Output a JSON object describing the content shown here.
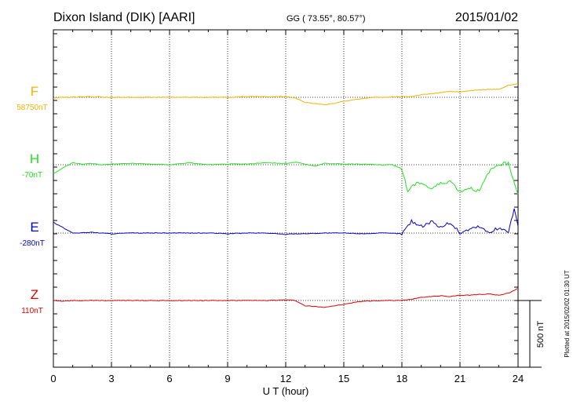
{
  "header": {
    "station": "Dixon Island (DIK)  [AARI]",
    "coords": "GG ( 73.55°,  80.57°)",
    "date": "2015/01/02"
  },
  "footer": {
    "plotted": "Plotted at 2015/02/02 01:30 UT",
    "scale_label": "500 nT"
  },
  "chart_data": {
    "type": "line",
    "title": "Dixon Island (DIK)  [AARI]",
    "xlabel": "U T (hour)",
    "ylabel": "",
    "xlim": [
      0,
      24
    ],
    "x_ticks": [
      "0",
      "3",
      "6",
      "9",
      "12",
      "15",
      "18",
      "21",
      "24"
    ],
    "scale_nT": 500,
    "grid": true,
    "colors": {
      "F": "#f0b400",
      "H": "#22e022",
      "E": "#0000d0",
      "Z": "#e00000"
    },
    "series": [
      {
        "name": "F",
        "baseline_label": "58750nT",
        "points": [
          [
            0,
            -5
          ],
          [
            0.5,
            0
          ],
          [
            1,
            0
          ],
          [
            2,
            5
          ],
          [
            3,
            0
          ],
          [
            4,
            0
          ],
          [
            5,
            0
          ],
          [
            6,
            0
          ],
          [
            7,
            0
          ],
          [
            8,
            0
          ],
          [
            9,
            0
          ],
          [
            10,
            5
          ],
          [
            11,
            5
          ],
          [
            12,
            5
          ],
          [
            12.5,
            -5
          ],
          [
            13,
            -40
          ],
          [
            13.5,
            -45
          ],
          [
            14,
            -55
          ],
          [
            14.5,
            -45
          ],
          [
            15,
            -30
          ],
          [
            15.5,
            -20
          ],
          [
            16,
            -10
          ],
          [
            16.5,
            0
          ],
          [
            17,
            0
          ],
          [
            18,
            5
          ],
          [
            18.5,
            5
          ],
          [
            19,
            20
          ],
          [
            19.5,
            25
          ],
          [
            20,
            35
          ],
          [
            20.5,
            45
          ],
          [
            21,
            40
          ],
          [
            21.5,
            50
          ],
          [
            22,
            55
          ],
          [
            22.5,
            60
          ],
          [
            23,
            60
          ],
          [
            23.5,
            90
          ],
          [
            24,
            100
          ]
        ]
      },
      {
        "name": "H",
        "baseline_label": "-70nT",
        "points": [
          [
            0,
            -65
          ],
          [
            0.3,
            -40
          ],
          [
            0.6,
            -15
          ],
          [
            1,
            15
          ],
          [
            1.5,
            5
          ],
          [
            2,
            10
          ],
          [
            2.5,
            0
          ],
          [
            3,
            5
          ],
          [
            4,
            10
          ],
          [
            5,
            5
          ],
          [
            6,
            0
          ],
          [
            7,
            15
          ],
          [
            8,
            0
          ],
          [
            9,
            5
          ],
          [
            10,
            5
          ],
          [
            11,
            15
          ],
          [
            12,
            10
          ],
          [
            12.5,
            20
          ],
          [
            13,
            5
          ],
          [
            13.5,
            -10
          ],
          [
            14,
            10
          ],
          [
            15,
            5
          ],
          [
            16,
            5
          ],
          [
            17,
            0
          ],
          [
            17.5,
            0
          ],
          [
            18,
            -30
          ],
          [
            18.3,
            -200
          ],
          [
            18.5,
            -160
          ],
          [
            19,
            -130
          ],
          [
            19.5,
            -180
          ],
          [
            20,
            -140
          ],
          [
            20.5,
            -120
          ],
          [
            21,
            -200
          ],
          [
            21.5,
            -170
          ],
          [
            22,
            -200
          ],
          [
            22.5,
            -50
          ],
          [
            23,
            5
          ],
          [
            23.5,
            10
          ],
          [
            24,
            -220
          ]
        ]
      },
      {
        "name": "E",
        "baseline_label": "-280nT",
        "points": [
          [
            0,
            80
          ],
          [
            0.5,
            40
          ],
          [
            1,
            0
          ],
          [
            2,
            5
          ],
          [
            3,
            -5
          ],
          [
            4,
            0
          ],
          [
            5,
            0
          ],
          [
            6,
            0
          ],
          [
            7,
            0
          ],
          [
            8,
            0
          ],
          [
            9,
            -5
          ],
          [
            10,
            0
          ],
          [
            11,
            0
          ],
          [
            12,
            -10
          ],
          [
            12.5,
            -5
          ],
          [
            13,
            -5
          ],
          [
            14,
            0
          ],
          [
            15,
            0
          ],
          [
            16,
            -5
          ],
          [
            17,
            0
          ],
          [
            18,
            -5
          ],
          [
            18.5,
            90
          ],
          [
            19,
            50
          ],
          [
            19.5,
            85
          ],
          [
            20,
            45
          ],
          [
            20.5,
            80
          ],
          [
            21,
            0
          ],
          [
            21.5,
            30
          ],
          [
            22,
            50
          ],
          [
            22.5,
            0
          ],
          [
            23,
            40
          ],
          [
            23.5,
            10
          ],
          [
            23.8,
            180
          ],
          [
            24,
            50
          ]
        ]
      },
      {
        "name": "Z",
        "baseline_label": "110nT",
        "points": [
          [
            0,
            0
          ],
          [
            0.5,
            -5
          ],
          [
            1,
            0
          ],
          [
            2,
            0
          ],
          [
            3,
            0
          ],
          [
            4,
            0
          ],
          [
            5,
            0
          ],
          [
            6,
            0
          ],
          [
            7,
            0
          ],
          [
            8,
            0
          ],
          [
            9,
            0
          ],
          [
            10,
            0
          ],
          [
            11,
            0
          ],
          [
            12,
            5
          ],
          [
            12.5,
            0
          ],
          [
            13,
            -40
          ],
          [
            13.5,
            -45
          ],
          [
            14,
            -50
          ],
          [
            14.5,
            -40
          ],
          [
            15,
            -30
          ],
          [
            15.5,
            -15
          ],
          [
            16,
            -5
          ],
          [
            17,
            0
          ],
          [
            18,
            0
          ],
          [
            18.5,
            10
          ],
          [
            19,
            25
          ],
          [
            19.5,
            30
          ],
          [
            20,
            35
          ],
          [
            20.5,
            30
          ],
          [
            21,
            40
          ],
          [
            21.5,
            40
          ],
          [
            22,
            45
          ],
          [
            22.5,
            50
          ],
          [
            23,
            40
          ],
          [
            23.5,
            55
          ],
          [
            24,
            90
          ]
        ]
      }
    ]
  }
}
